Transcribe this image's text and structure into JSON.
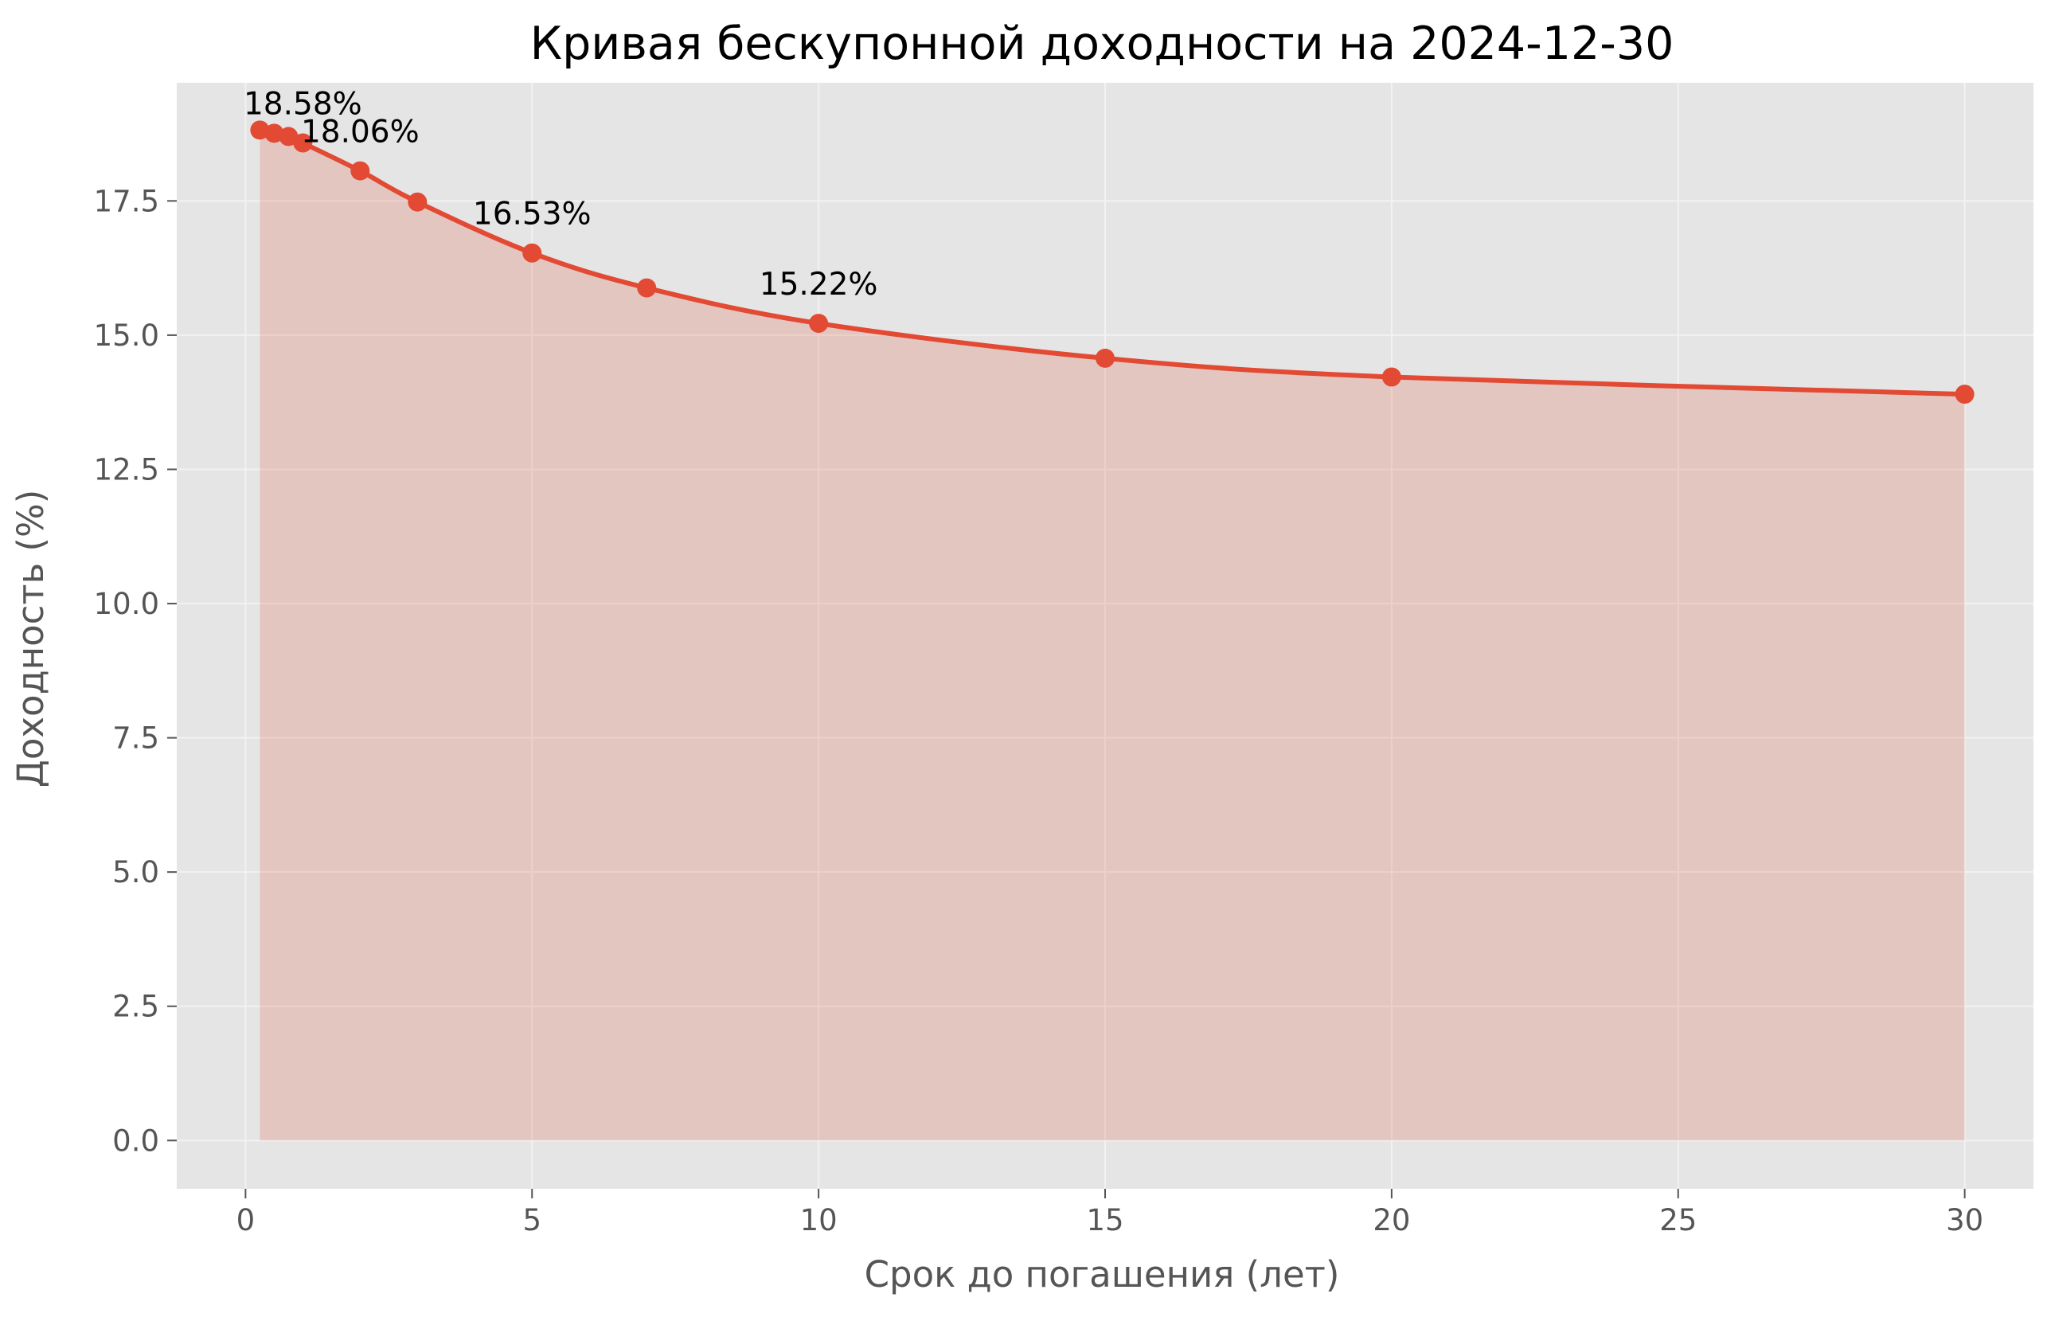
{
  "chart_data": {
    "type": "line",
    "title": "Кривая бескупонной доходности на 2024-12-30",
    "xlabel": "Срок до погашения (лет)",
    "ylabel": "Доходность (%)",
    "x": [
      0.25,
      0.5,
      0.75,
      1,
      2,
      3,
      5,
      7,
      10,
      15,
      20,
      30
    ],
    "series": [
      {
        "values": [
          18.82,
          18.76,
          18.7,
          18.58,
          18.06,
          17.48,
          16.53,
          15.88,
          15.22,
          14.57,
          14.22,
          13.9
        ]
      }
    ],
    "xlim": [
      -1.2,
      31.2
    ],
    "ylim": [
      -0.9,
      19.7
    ],
    "xticks": [
      0,
      5,
      10,
      15,
      20,
      25,
      30
    ],
    "xtick_labels": [
      "0",
      "5",
      "10",
      "15",
      "20",
      "25",
      "30"
    ],
    "yticks": [
      0,
      2.5,
      5,
      7.5,
      10,
      12.5,
      15,
      17.5
    ],
    "ytick_labels": [
      "0.0",
      "2.5",
      "5.0",
      "7.5",
      "10.0",
      "12.5",
      "15.0",
      "17.5"
    ],
    "annotations": [
      {
        "x": 1,
        "y": 18.58,
        "text": "18.58%"
      },
      {
        "x": 2,
        "y": 18.06,
        "text": "18.06%"
      },
      {
        "x": 5,
        "y": 16.53,
        "text": "16.53%"
      },
      {
        "x": 10,
        "y": 15.22,
        "text": "15.22%"
      }
    ],
    "grid": true,
    "fill_under_line": true,
    "markers": true,
    "colors": {
      "line": "#E24A33",
      "fill": "#E24A33",
      "plot_background": "#E5E5E5",
      "grid": "#F2F2F2"
    }
  }
}
